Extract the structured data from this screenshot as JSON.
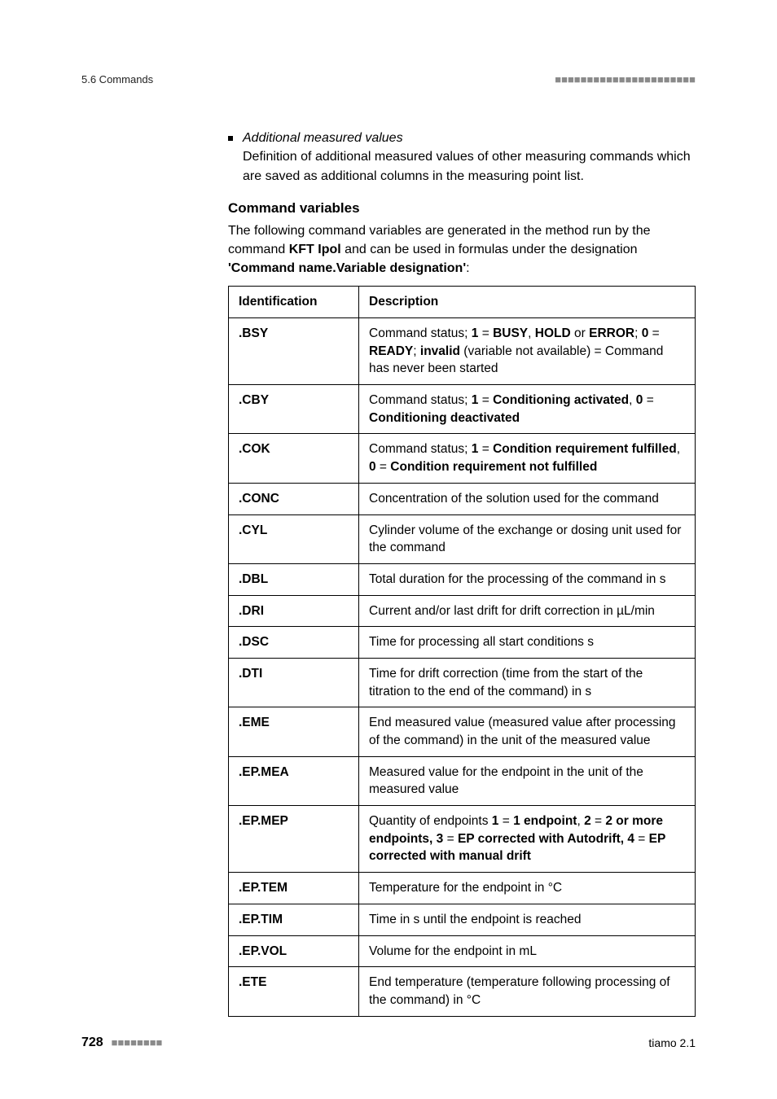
{
  "header": {
    "section_ref": "5.6 Commands",
    "dashes": "■■■■■■■■■■■■■■■■■■■■■■"
  },
  "bullet": {
    "title": "Additional measured values",
    "body": "Definition of additional measured values of other measuring commands which are saved as additional columns in the measuring point list."
  },
  "section": {
    "title": "Command variables",
    "intro_pre": "The following command variables are generated in the method run by the command ",
    "intro_cmd": "KFT Ipol",
    "intro_mid": " and can be used in formulas under the designation ",
    "intro_pattern": "'Command name.Variable designation'",
    "intro_post": ":"
  },
  "table": {
    "headers": {
      "id": "Identification",
      "desc": "Description"
    },
    "rows": [
      {
        "id": ".BSY",
        "desc_html": "Command status; <strong>1</strong> = <strong>BUSY</strong>, <strong>HOLD</strong> or <strong>ERROR</strong>; <strong>0</strong> = <strong>READY</strong>; <strong>invalid</strong> (variable not available) = Command has never been started"
      },
      {
        "id": ".CBY",
        "desc_html": "Command status; <strong>1</strong> = <strong>Conditioning activated</strong>, <strong>0</strong> = <strong>Conditioning deactivated</strong>"
      },
      {
        "id": ".COK",
        "desc_html": "Command status; <strong>1</strong> = <strong>Condition requirement fulfilled</strong>, <strong>0</strong> = <strong>Condition requirement not fulfilled</strong>"
      },
      {
        "id": ".CONC",
        "desc_html": "Concentration of the solution used for the command"
      },
      {
        "id": ".CYL",
        "desc_html": "Cylinder volume of the exchange or dosing unit used for the command"
      },
      {
        "id": ".DBL",
        "desc_html": "Total duration for the processing of the command in s"
      },
      {
        "id": ".DRI",
        "desc_html": "Current and/or last drift for drift correction in µL/min"
      },
      {
        "id": ".DSC",
        "desc_html": "Time for processing all start conditions s"
      },
      {
        "id": ".DTI",
        "desc_html": "Time for drift correction (time from the start of the titration to the end of the command) in s"
      },
      {
        "id": ".EME",
        "desc_html": "End measured value (measured value after processing of the command) in the unit of the measured value"
      },
      {
        "id": ".EP.MEA",
        "desc_html": "Measured value for the endpoint in the unit of the measured value"
      },
      {
        "id": ".EP.MEP",
        "desc_html": "Quantity of endpoints <strong>1</strong> = <strong>1 endpoint</strong>, <strong>2</strong> = <strong>2 or more endpoints, 3</strong> = <strong>EP corrected with Autodrift, 4</strong> = <strong>EP corrected with manual drift</strong>"
      },
      {
        "id": ".EP.TEM",
        "desc_html": "Temperature for the endpoint in °C"
      },
      {
        "id": ".EP.TIM",
        "desc_html": "Time in s until the endpoint is reached"
      },
      {
        "id": ".EP.VOL",
        "desc_html": "Volume for the endpoint in mL"
      },
      {
        "id": ".ETE",
        "desc_html": "End temperature (temperature following processing of the command) in °C"
      }
    ]
  },
  "footer": {
    "page_number": "728",
    "dashes": "■■■■■■■■",
    "product": "tiamo 2.1"
  }
}
